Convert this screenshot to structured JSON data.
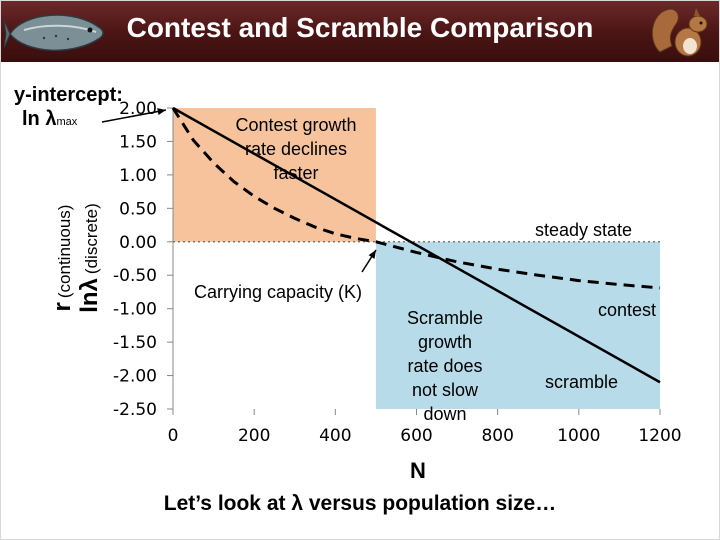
{
  "header": {
    "title": "Contest and Scramble Comparison",
    "left_icon": "salmon-icon",
    "right_icon": "squirrel-icon"
  },
  "y_intercept_label": {
    "line1": "y-intercept:",
    "line2": "ln λ",
    "line2_sub": "max"
  },
  "chart_data": {
    "type": "line",
    "xlabel": "N",
    "ylabel_part1": "r",
    "ylabel_part1_note": "(continuous)",
    "ylabel_part2": "lnλ",
    "ylabel_part2_note": "(discrete)",
    "xlim": [
      0,
      1200
    ],
    "ylim": [
      -2.5,
      2.0
    ],
    "x_ticks": [
      "0",
      "200",
      "400",
      "600",
      "800",
      "1000",
      "1200"
    ],
    "y_ticks": [
      "2.00",
      "1.50",
      "1.00",
      "0.50",
      "0.00",
      "-0.50",
      "-1.00",
      "-1.50",
      "-2.00",
      "-2.50"
    ],
    "carrying_capacity": 500,
    "series": [
      {
        "name": "scramble",
        "style": "solid",
        "x": [
          0,
          1200
        ],
        "y": [
          2.0,
          -2.1
        ]
      },
      {
        "name": "contest",
        "style": "dashed",
        "x": [
          0,
          50,
          100,
          150,
          200,
          250,
          300,
          350,
          400,
          450,
          500,
          600,
          700,
          800,
          900,
          1000,
          1100,
          1200
        ],
        "y": [
          2.0,
          1.52,
          1.18,
          0.9,
          0.68,
          0.5,
          0.35,
          0.22,
          0.12,
          0.05,
          0.0,
          -0.16,
          -0.3,
          -0.41,
          -0.5,
          -0.58,
          -0.64,
          -0.69
        ]
      }
    ],
    "regions": [
      {
        "x": [
          0,
          500
        ],
        "y": [
          0,
          2.0
        ],
        "color": "#f6c39d"
      },
      {
        "x": [
          500,
          1200
        ],
        "y": [
          -2.5,
          0
        ],
        "color": "#b7dbe8"
      }
    ],
    "annotations": {
      "contest_faster": [
        "Contest growth",
        "rate declines",
        "faster"
      ],
      "steady_state": "steady state",
      "carrying_capacity": "Carrying capacity (K)",
      "scramble_no_slow": [
        "Scramble",
        "growth",
        "rate does",
        "not slow",
        "down"
      ],
      "contest_label": "contest",
      "scramble_label": "scramble"
    }
  },
  "footer": {
    "text": "Let’s look at λ versus population size…"
  }
}
